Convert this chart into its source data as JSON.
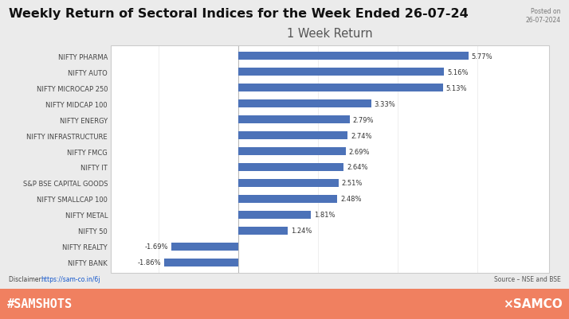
{
  "title": "Weekly Return of Sectoral Indices for the Week Ended 26-07-24",
  "posted_on_line1": "Posted on",
  "posted_on_line2": "26-07-2024",
  "chart_title": "1 Week Return",
  "categories": [
    "NIFTY BANK",
    "NIFTY REALTY",
    "NIFTY 50",
    "NIFTY METAL",
    "NIFTY SMALLCAP 100",
    "S&P BSE CAPITAL GOODS",
    "NIFTY IT",
    "NIFTY FMCG",
    "NIFTY INFRASTRUCTURE",
    "NIFTY ENERGY",
    "NIFTY MIDCAP 100",
    "NIFTY MICROCAP 250",
    "NIFTY AUTO",
    "NIFTY PHARMA"
  ],
  "values": [
    -1.86,
    -1.69,
    1.24,
    1.81,
    2.48,
    2.51,
    2.64,
    2.69,
    2.74,
    2.79,
    3.33,
    5.13,
    5.16,
    5.77
  ],
  "bar_color": "#4C72B8",
  "background_outer": "#EBEBEB",
  "background_chart": "#FFFFFF",
  "disclaimer_url": "https://sam-co.in/6j",
  "source_text": "Source – NSE and BSE",
  "footer_bg": "#F08060",
  "footer_left": "#SAMSHOTS",
  "footer_right": "×SAMCO",
  "label_fontsize": 6.0,
  "title_fontsize": 11.5,
  "chart_title_fontsize": 10.5,
  "bar_height": 0.52,
  "xlim_min": -3.2,
  "xlim_max": 7.8
}
